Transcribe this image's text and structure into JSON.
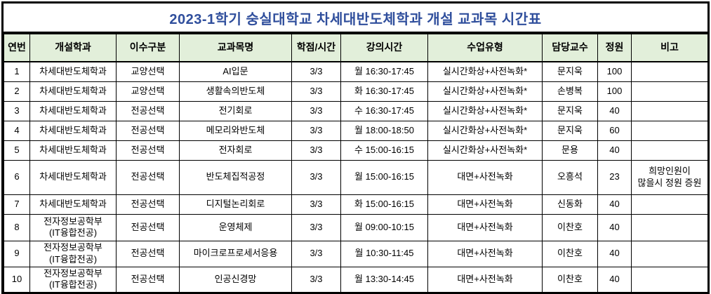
{
  "title": "2023-1학기 숭실대학교 차세대반도체학과 개설 교과목 시간표",
  "colors": {
    "title_text": "#2f4e9c",
    "header_bg": "#e2efda",
    "border": "#000000",
    "cell_text": "#000000"
  },
  "table": {
    "columns": [
      "연번",
      "개설학과",
      "이수구분",
      "교과목명",
      "학점/시간",
      "강의시간",
      "수업유형",
      "담당교수",
      "정원",
      "비고"
    ],
    "rows": [
      [
        "1",
        "차세대반도체학과",
        "교양선택",
        "AI입문",
        "3/3",
        "월 16:30-17:45",
        "실시간화상+사전녹화*",
        "문지욱",
        "100",
        ""
      ],
      [
        "2",
        "차세대반도체학과",
        "교양선택",
        "생활속의반도체",
        "3/3",
        "화 16:30-17:45",
        "실시간화상+사전녹화*",
        "손병복",
        "100",
        ""
      ],
      [
        "3",
        "차세대반도체학과",
        "전공선택",
        "전기회로",
        "3/3",
        "수 16:30-17:45",
        "실시간화상+사전녹화*",
        "문지욱",
        "40",
        ""
      ],
      [
        "4",
        "차세대반도체학과",
        "전공선택",
        "메모리와반도체",
        "3/3",
        "월 18:00-18:50",
        "실시간화상+사전녹화*",
        "문지욱",
        "60",
        ""
      ],
      [
        "5",
        "차세대반도체학과",
        "전공선택",
        "전자회로",
        "3/3",
        "수 15:00-16:15",
        "실시간화상+사전녹화*",
        "문용",
        "40",
        ""
      ],
      [
        "6",
        "차세대반도체학과",
        "전공선택",
        "반도체집적공정",
        "3/3",
        "월 15:00-16:15",
        "대면+사전녹화",
        "오흥석",
        "23",
        "희망인원이\n많을시 정원 증원"
      ],
      [
        "7",
        "차세대반도체학과",
        "전공선택",
        "디지털논리회로",
        "3/3",
        "화 15:00-16:15",
        "대면+사전녹화",
        "신동화",
        "40",
        ""
      ],
      [
        "8",
        "전자정보공학부\n(IT융합전공)",
        "전공선택",
        "운영체제",
        "3/3",
        "월 09:00-10:15",
        "대면+사전녹화",
        "이찬호",
        "40",
        ""
      ],
      [
        "9",
        "전자정보공학부\n(IT융합전공)",
        "전공선택",
        "마이크로프로세서응용",
        "3/3",
        "월 10:30-11:45",
        "대면+사전녹화",
        "이찬호",
        "40",
        ""
      ],
      [
        "10",
        "전자정보공학부\n(IT융합전공)",
        "전공선택",
        "인공신경망",
        "3/3",
        "월 13:30-14:45",
        "대면+사전녹화",
        "이찬호",
        "40",
        ""
      ]
    ]
  }
}
